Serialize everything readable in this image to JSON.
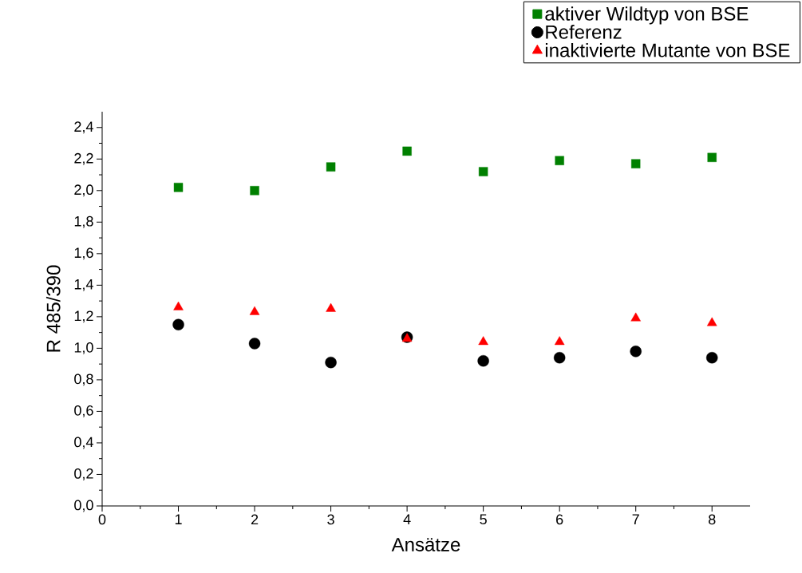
{
  "chart_data": {
    "type": "scatter",
    "xlabel": "Ansätze",
    "ylabel": "R 485/390",
    "x": [
      1,
      2,
      3,
      4,
      5,
      6,
      7,
      8
    ],
    "series": [
      {
        "name": "aktiver Wildtyp von BSE",
        "color": "#008000",
        "marker": "square",
        "values": [
          2.02,
          2.0,
          2.15,
          2.25,
          2.12,
          2.19,
          2.17,
          2.21
        ]
      },
      {
        "name": "Referenz",
        "color": "#000000",
        "marker": "circle",
        "values": [
          1.15,
          1.03,
          0.91,
          1.07,
          0.92,
          0.94,
          0.98,
          0.94
        ]
      },
      {
        "name": "inaktivierte Mutante von BSE",
        "color": "#ff0000",
        "marker": "triangle",
        "values": [
          1.26,
          1.23,
          1.25,
          1.06,
          1.04,
          1.04,
          1.19,
          1.16
        ]
      }
    ],
    "xlim": [
      0,
      8.5
    ],
    "ylim": [
      0,
      2.5
    ],
    "xticks": [
      0,
      1,
      2,
      3,
      4,
      5,
      6,
      7,
      8
    ],
    "yticks": [
      {
        "value": 0,
        "label": "0,0"
      },
      {
        "value": 0.2,
        "label": "0,2"
      },
      {
        "value": 0.4,
        "label": "0,4"
      },
      {
        "value": 0.6,
        "label": "0,6"
      },
      {
        "value": 0.8,
        "label": "0,8"
      },
      {
        "value": 1.0,
        "label": "1,0"
      },
      {
        "value": 1.2,
        "label": "1,2"
      },
      {
        "value": 1.4,
        "label": "1,4"
      },
      {
        "value": 1.6,
        "label": "1,6"
      },
      {
        "value": 1.8,
        "label": "1,8"
      },
      {
        "value": 2.0,
        "label": "2,0"
      },
      {
        "value": 2.2,
        "label": "2,2"
      },
      {
        "value": 2.4,
        "label": "2,4"
      }
    ],
    "legend": "top right",
    "grid": false
  }
}
